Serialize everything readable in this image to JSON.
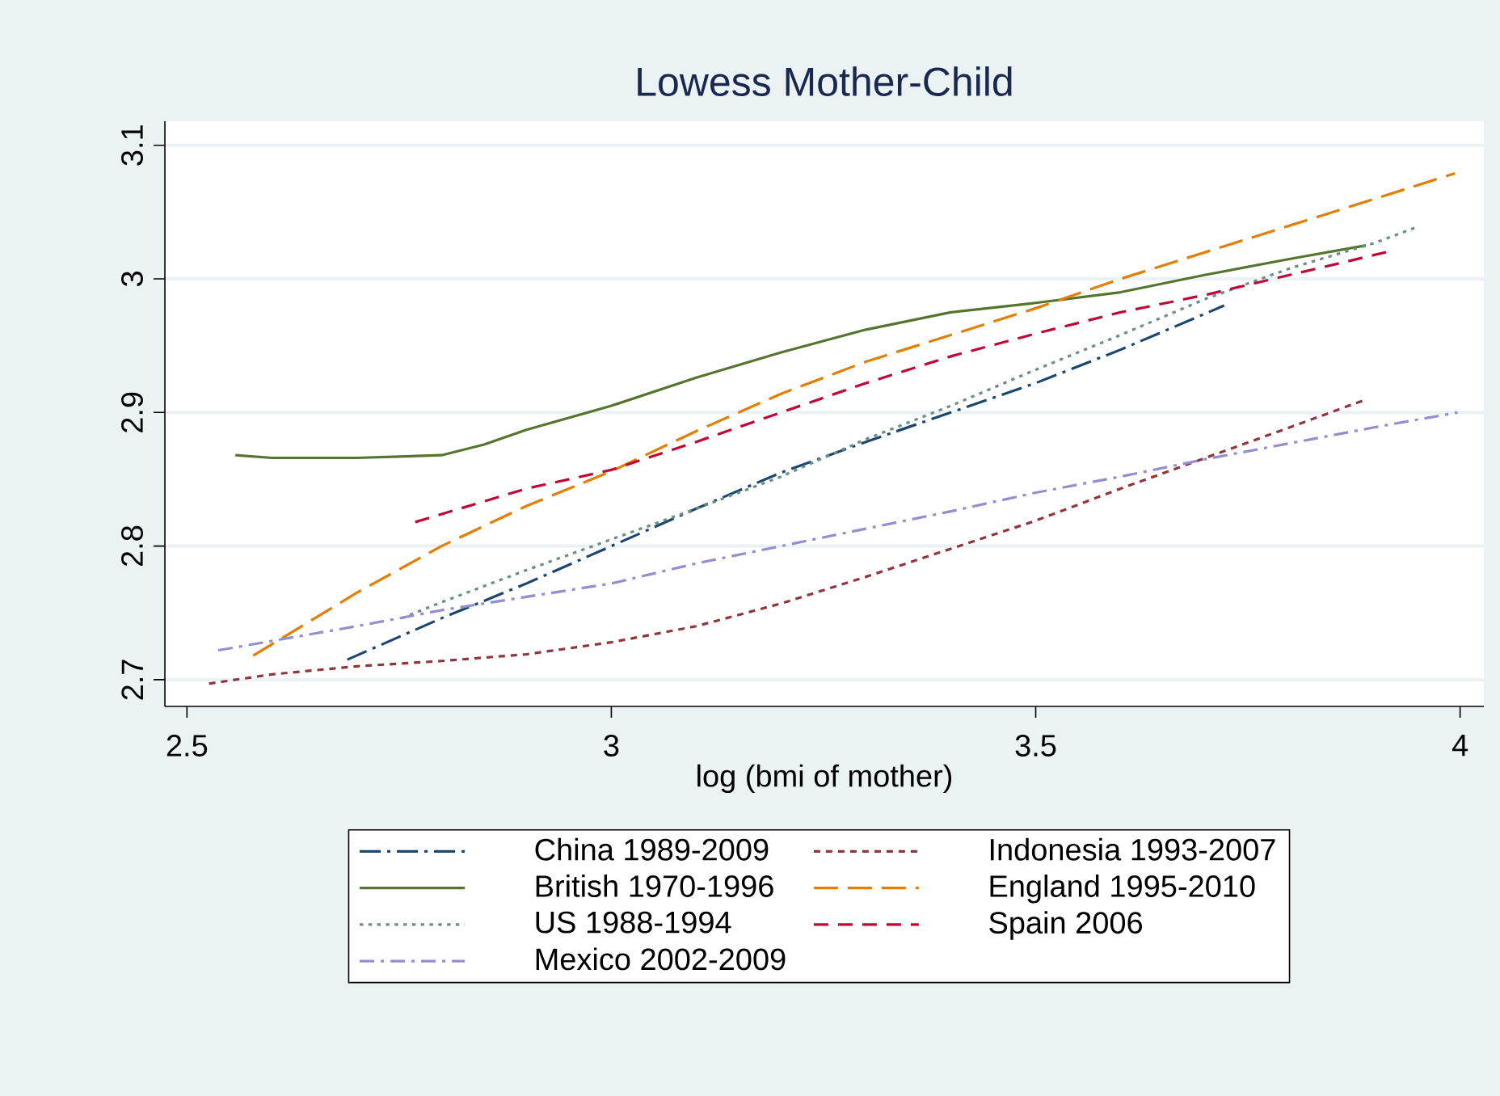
{
  "chart_data": {
    "type": "line",
    "title": "Lowess Mother-Child",
    "xlabel": "log (bmi of mother)",
    "xlim": [
      2.474,
      4.028
    ],
    "ylim": [
      2.68,
      3.118
    ],
    "xticks": [
      2.5,
      3,
      3.5,
      4
    ],
    "yticks": [
      2.7,
      2.8,
      2.9,
      3,
      3.1
    ],
    "grid": "y",
    "legend": "bottom",
    "marker": "none",
    "series": [
      {
        "name": "China 1989-2009",
        "color": "#1a476f",
        "line_style": "dashdot",
        "x": [
          2.689,
          2.8,
          2.9,
          3.0,
          3.1,
          3.2,
          3.3,
          3.4,
          3.5,
          3.6,
          3.722
        ],
        "values": [
          2.715,
          2.746,
          2.772,
          2.8,
          2.828,
          2.855,
          2.878,
          2.9,
          2.922,
          2.947,
          2.98
        ]
      },
      {
        "name": "Indonesia 1993-2007",
        "color": "#90353b",
        "line_style": "shortdash",
        "x": [
          2.526,
          2.6,
          2.7,
          2.8,
          2.9,
          3.0,
          3.1,
          3.2,
          3.3,
          3.4,
          3.5,
          3.6,
          3.7,
          3.8,
          3.886
        ],
        "values": [
          2.697,
          2.704,
          2.71,
          2.714,
          2.719,
          2.728,
          2.74,
          2.757,
          2.777,
          2.798,
          2.819,
          2.843,
          2.866,
          2.889,
          2.909
        ]
      },
      {
        "name": "British 1970-1996",
        "color": "#55752f",
        "line_style": "solid",
        "x": [
          2.557,
          2.6,
          2.7,
          2.8,
          2.85,
          2.9,
          3.0,
          3.1,
          3.2,
          3.3,
          3.4,
          3.5,
          3.6,
          3.7,
          3.8,
          3.889
        ],
        "values": [
          2.868,
          2.866,
          2.866,
          2.868,
          2.876,
          2.887,
          2.905,
          2.926,
          2.945,
          2.962,
          2.975,
          2.982,
          2.99,
          3.003,
          3.015,
          3.025
        ]
      },
      {
        "name": "England 1995-2010",
        "color": "#e37e00",
        "line_style": "longdash",
        "x": [
          2.578,
          2.7,
          2.8,
          2.9,
          3.0,
          3.1,
          3.2,
          3.3,
          3.4,
          3.5,
          3.6,
          3.7,
          3.8,
          3.9,
          3.994
        ],
        "values": [
          2.718,
          2.765,
          2.8,
          2.83,
          2.856,
          2.886,
          2.914,
          2.938,
          2.958,
          2.978,
          3.0,
          3.02,
          3.04,
          3.06,
          3.079
        ]
      },
      {
        "name": "US 1988-1994",
        "color": "#6e8e84",
        "line_style": "dotted",
        "x": [
          2.753,
          2.8,
          2.9,
          3.0,
          3.1,
          3.2,
          3.3,
          3.4,
          3.5,
          3.6,
          3.7,
          3.8,
          3.9,
          3.95
        ],
        "values": [
          2.746,
          2.758,
          2.782,
          2.805,
          2.828,
          2.852,
          2.88,
          2.905,
          2.932,
          2.958,
          2.985,
          3.008,
          3.027,
          3.039
        ]
      },
      {
        "name": "Spain 2006",
        "color": "#c10534",
        "line_style": "dashed",
        "x": [
          2.769,
          2.9,
          3.0,
          3.1,
          3.2,
          3.3,
          3.4,
          3.5,
          3.6,
          3.7,
          3.8,
          3.913
        ],
        "values": [
          2.818,
          2.843,
          2.857,
          2.878,
          2.9,
          2.922,
          2.942,
          2.959,
          2.975,
          2.988,
          3.003,
          3.02
        ]
      },
      {
        "name": "Mexico 2002-2009",
        "color": "#938dd2",
        "line_style": "longdashdot",
        "x": [
          2.537,
          2.7,
          2.8,
          2.9,
          3.0,
          3.1,
          3.2,
          3.3,
          3.4,
          3.5,
          3.6,
          3.7,
          3.8,
          3.9,
          3.997
        ],
        "values": [
          2.722,
          2.74,
          2.752,
          2.762,
          2.772,
          2.787,
          2.8,
          2.813,
          2.826,
          2.84,
          2.852,
          2.865,
          2.877,
          2.889,
          2.9
        ]
      }
    ]
  }
}
